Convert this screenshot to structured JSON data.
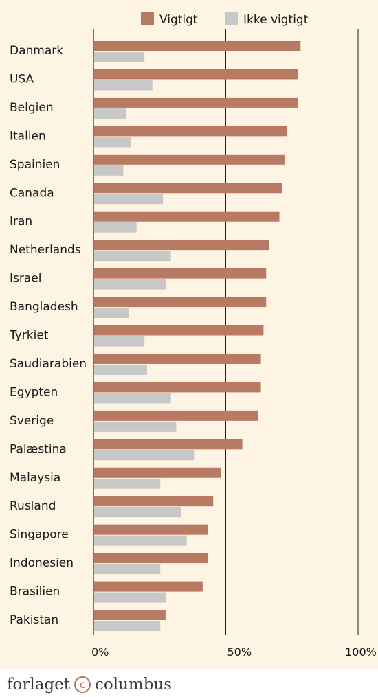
{
  "chart_data": {
    "type": "bar",
    "orientation": "horizontal",
    "categories": [
      "Danmark",
      "USA",
      "Belgien",
      "Italien",
      "Spainien",
      "Canada",
      "Iran",
      "Netherlands",
      "Israel",
      "Bangladesh",
      "Tyrkiet",
      "Saudiarabien",
      "Egypten",
      "Sverige",
      "Palæstina",
      "Malaysia",
      "Rusland",
      "Singapore",
      "Indonesien",
      "Brasilien",
      "Pakistan"
    ],
    "series": [
      {
        "name": "Vigtigt",
        "color": "#b87a63",
        "values": [
          78,
          77,
          77,
          73,
          72,
          71,
          70,
          66,
          65,
          65,
          64,
          63,
          63,
          62,
          56,
          48,
          45,
          43,
          43,
          41,
          27
        ]
      },
      {
        "name": "Ikke vigtigt",
        "color": "#c8c8c8",
        "values": [
          19,
          22,
          12,
          14,
          11,
          26,
          16,
          29,
          27,
          13,
          19,
          20,
          29,
          31,
          38,
          25,
          33,
          35,
          25,
          27,
          25
        ]
      }
    ],
    "xlim": [
      0,
      100
    ],
    "x_ticks": [
      "0%",
      "50%",
      "100%"
    ],
    "legend_position": "top",
    "gridlines": "vertical at 50% and 100%"
  },
  "footer": {
    "word_left": "forlaget",
    "copyright_symbol": "c",
    "word_right": "columbus"
  },
  "colors": {
    "background": "#fdf4e3",
    "accent": "#b5705a"
  }
}
